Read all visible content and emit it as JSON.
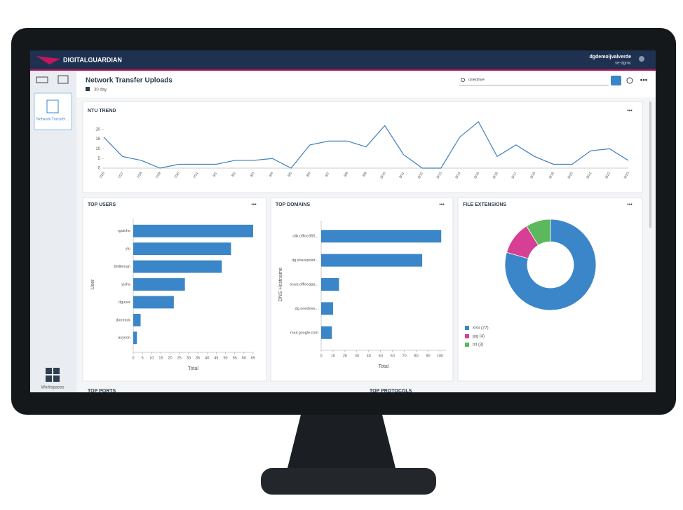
{
  "app": {
    "brand": "DIGITALGUARDIAN",
    "user": "dgdemo\\jvalverde",
    "server": "se-dgmc",
    "page_title": "Network Transfer Uploads",
    "period": "30 day",
    "search": "onedrive",
    "workspace_tile": "Network Transfer...",
    "workspaces": "Workspaces",
    "more_panels": [
      "TOP PORTS",
      "TOP PROTOCOLS"
    ]
  },
  "chart_data": [
    {
      "type": "line",
      "title": "NTU TREND",
      "color": "#3d7ebf",
      "categories": [
        "7/26",
        "7/27",
        "7/28",
        "7/29",
        "7/30",
        "7/31",
        "8/1",
        "8/2",
        "8/3",
        "8/4",
        "8/5",
        "8/6",
        "8/7",
        "8/8",
        "8/9",
        "8/10",
        "8/11",
        "8/12",
        "8/13",
        "8/14",
        "8/15",
        "8/16",
        "8/17",
        "8/18",
        "8/19",
        "8/20",
        "8/21",
        "8/22",
        "8/23"
      ],
      "values": [
        16,
        6,
        4,
        0,
        2,
        2,
        2,
        4,
        4,
        5,
        0,
        12,
        14,
        14,
        11,
        22,
        7,
        0,
        0,
        16,
        24,
        6,
        12,
        6,
        2,
        2,
        9,
        10,
        4
      ],
      "ylim": [
        0,
        25
      ],
      "yticks": [
        0,
        5,
        10,
        15,
        20
      ]
    },
    {
      "type": "bar",
      "orientation": "horizontal",
      "title": "TOP USERS",
      "color": "#3a86c8",
      "categories": [
        "rgutcho",
        "ylu",
        "bhilleman",
        "yisha",
        "dguser",
        "jbortnick",
        "asyrion"
      ],
      "values": [
        65,
        53,
        48,
        28,
        22,
        4,
        2
      ],
      "xlim": [
        0,
        65
      ],
      "xticks": [
        0,
        5,
        10,
        15,
        20,
        25,
        30,
        35,
        40,
        45,
        50,
        55,
        60,
        65
      ],
      "xlabel": "Total",
      "ylabel": "User"
    },
    {
      "type": "bar",
      "orientation": "horizontal",
      "title": "TOP DOMAINS",
      "color": "#3a86c8",
      "categories": [
        "ollk.office365...",
        "dg.sharepoint...",
        "ocws.officeapp...",
        "dg.onedrive...",
        "mail.google.com"
      ],
      "values": [
        101,
        85,
        15,
        10,
        9
      ],
      "xlim": [
        0,
        105
      ],
      "xticks": [
        0,
        10,
        20,
        30,
        40,
        50,
        60,
        70,
        80,
        90,
        100
      ],
      "xlabel": "Total",
      "ylabel": "DNS Hostname"
    },
    {
      "type": "pie",
      "donut": true,
      "title": "FILE EXTENSIONS",
      "categories": [
        "xlsx",
        "jpg",
        "txt"
      ],
      "values": [
        27,
        4,
        3
      ],
      "value_labels": [
        "xlsx (27)",
        "jpg (4)",
        "txt (3)"
      ],
      "colors": [
        "#3a86c8",
        "#d63f94",
        "#5cb85c"
      ]
    }
  ]
}
